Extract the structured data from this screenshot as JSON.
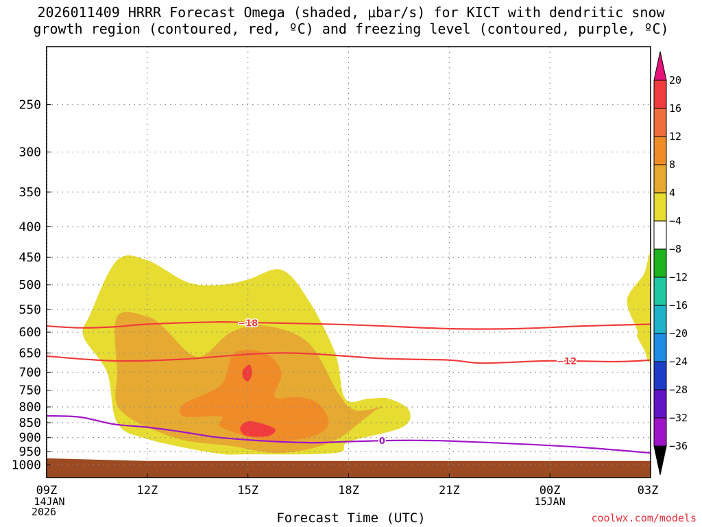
{
  "chart_data": {
    "type": "heatmap",
    "title_line1": "2026011409 HRRR Forecast Omega (shaded, μbar/s) for KICT with dendritic snow",
    "title_line2": "growth region (contoured, red, ºC) and freezing level (contoured, purple, ºC)",
    "xlabel": "Forecast Time (UTC)",
    "ylabel": "",
    "credit": "coolwx.com/models",
    "y_axis": {
      "scale": "log-pressure",
      "range_hpa": [
        1050,
        200
      ],
      "ticks": [
        "250",
        "300",
        "350",
        "400",
        "450",
        "500",
        "550",
        "600",
        "650",
        "700",
        "750",
        "800",
        "850",
        "900",
        "950",
        "1000"
      ]
    },
    "x_axis": {
      "range_hours": [
        0,
        18
      ],
      "ticks": [
        {
          "hour": 0,
          "label": "09Z",
          "sub1": "14JAN",
          "sub2": "2026"
        },
        {
          "hour": 3,
          "label": "12Z",
          "sub1": "",
          "sub2": ""
        },
        {
          "hour": 6,
          "label": "15Z",
          "sub1": "",
          "sub2": ""
        },
        {
          "hour": 9,
          "label": "18Z",
          "sub1": "",
          "sub2": ""
        },
        {
          "hour": 12,
          "label": "21Z",
          "sub1": "",
          "sub2": ""
        },
        {
          "hour": 15,
          "label": "00Z",
          "sub1": "15JAN",
          "sub2": ""
        },
        {
          "hour": 18,
          "label": "03Z",
          "sub1": "",
          "sub2": ""
        }
      ]
    },
    "colorbar": {
      "levels": [
        "20",
        "16",
        "12",
        "8",
        "4",
        "-4",
        "-8",
        "-12",
        "-16",
        "-20",
        "-24",
        "-28",
        "-32",
        "-36"
      ],
      "colors": [
        "#f03c3c",
        "#f06e3c",
        "#f08c28",
        "#e6aa32",
        "#e6dc32",
        "#ffffff",
        "#1eb41e",
        "#1ec8a0",
        "#1eb4c8",
        "#1e8ce6",
        "#1e3cc8",
        "#6414c8",
        "#a014c8",
        "#aaaaaa"
      ],
      "top_arrow_color": "#e6147a",
      "bottom_arrow_color": "#000000"
    },
    "omega_fill": [
      {
        "level": 4,
        "color": "#e6dc32",
        "points": [
          [
            2.1,
            455
          ],
          [
            3,
            455
          ],
          [
            4.2,
            495
          ],
          [
            5.2,
            500
          ],
          [
            6,
            490
          ],
          [
            7,
            472
          ],
          [
            7.8,
            530
          ],
          [
            8.6,
            650
          ],
          [
            8.9,
            775
          ],
          [
            9.6,
            775
          ],
          [
            10.2,
            775
          ],
          [
            10.8,
            810
          ],
          [
            10.6,
            865
          ],
          [
            9,
            915
          ],
          [
            8.6,
            955
          ],
          [
            6,
            960
          ],
          [
            5,
            955
          ],
          [
            3,
            905
          ],
          [
            2.1,
            850
          ],
          [
            1.8,
            700
          ],
          [
            1.1,
            610
          ],
          [
            1.3,
            560
          ]
        ]
      },
      {
        "level": 4,
        "color": "#e6dc32",
        "points": [
          [
            17.6,
            595
          ],
          [
            17.3,
            530
          ],
          [
            17.8,
            480
          ],
          [
            18,
            450
          ],
          [
            18,
            660
          ],
          [
            17.8,
            640
          ],
          [
            17.6,
            610
          ]
        ]
      },
      {
        "level": 8,
        "color": "#e6aa32",
        "points": [
          [
            2.1,
            565
          ],
          [
            3,
            565
          ],
          [
            3.5,
            590
          ],
          [
            4.5,
            660
          ],
          [
            5.5,
            600
          ],
          [
            6.5,
            585
          ],
          [
            7.8,
            625
          ],
          [
            8.7,
            760
          ],
          [
            9.2,
            810
          ],
          [
            10,
            800
          ],
          [
            9.8,
            810
          ],
          [
            9.5,
            835
          ],
          [
            8.5,
            915
          ],
          [
            7,
            955
          ],
          [
            5.5,
            930
          ],
          [
            3.8,
            900
          ],
          [
            2.2,
            810
          ],
          [
            2.1,
            700
          ]
        ]
      },
      {
        "level": 12,
        "color": "#f08c28",
        "points": [
          [
            4.1,
            830
          ],
          [
            4.1,
            790
          ],
          [
            5.2,
            735
          ],
          [
            5.6,
            650
          ],
          [
            6.5,
            650
          ],
          [
            7,
            700
          ],
          [
            6.8,
            770
          ],
          [
            7.5,
            770
          ],
          [
            8.1,
            790
          ],
          [
            8.4,
            855
          ],
          [
            7.8,
            900
          ],
          [
            6.5,
            910
          ],
          [
            5.2,
            865
          ],
          [
            5.2,
            830
          ]
        ]
      },
      {
        "level": 16,
        "color": "#f03c3c",
        "points": [
          [
            5.8,
            860
          ],
          [
            6.1,
            845
          ],
          [
            6.8,
            870
          ],
          [
            6.6,
            895
          ],
          [
            6,
            895
          ],
          [
            5.8,
            880
          ]
        ]
      },
      {
        "level": 16,
        "color": "#f03c3c",
        "points": [
          [
            5.85,
            695
          ],
          [
            6.05,
            680
          ],
          [
            6.12,
            705
          ],
          [
            6.0,
            725
          ],
          [
            5.86,
            715
          ]
        ]
      }
    ],
    "ground_color": "#9c4a22",
    "ground_top": [
      [
        0,
        975
      ],
      [
        3,
        985
      ],
      [
        9,
        985
      ],
      [
        18,
        985
      ]
    ],
    "contours": [
      {
        "name": "dgz-minus-18",
        "label": "−18",
        "color": "#f03c3c",
        "label_at": [
          6,
          579
        ],
        "points": [
          [
            0,
            586
          ],
          [
            1,
            590
          ],
          [
            2,
            588
          ],
          [
            3,
            582
          ],
          [
            5,
            577
          ],
          [
            6,
            578
          ],
          [
            9,
            583
          ],
          [
            12,
            592
          ],
          [
            14,
            592
          ],
          [
            16,
            586
          ],
          [
            18,
            582
          ]
        ]
      },
      {
        "name": "dgz-minus-12",
        "label": "−12",
        "color": "#f03c3c",
        "label_at": [
          15.5,
          670
        ],
        "points": [
          [
            0,
            658
          ],
          [
            2,
            670
          ],
          [
            4,
            666
          ],
          [
            7,
            650
          ],
          [
            10,
            664
          ],
          [
            12,
            668
          ],
          [
            13,
            676
          ],
          [
            15,
            670
          ],
          [
            17,
            672
          ],
          [
            18,
            668
          ]
        ]
      },
      {
        "name": "freezing-level-0",
        "label": "0",
        "color": "#a014c8",
        "label_at": [
          10,
          911
        ],
        "points": [
          [
            0,
            828
          ],
          [
            1,
            832
          ],
          [
            2,
            855
          ],
          [
            3,
            865
          ],
          [
            4,
            880
          ],
          [
            5,
            898
          ],
          [
            6,
            908
          ],
          [
            7,
            915
          ],
          [
            8,
            918
          ],
          [
            9,
            914
          ],
          [
            10,
            911
          ],
          [
            11,
            910
          ],
          [
            12,
            912
          ],
          [
            14,
            922
          ],
          [
            16,
            935
          ],
          [
            18,
            955
          ]
        ]
      }
    ]
  }
}
